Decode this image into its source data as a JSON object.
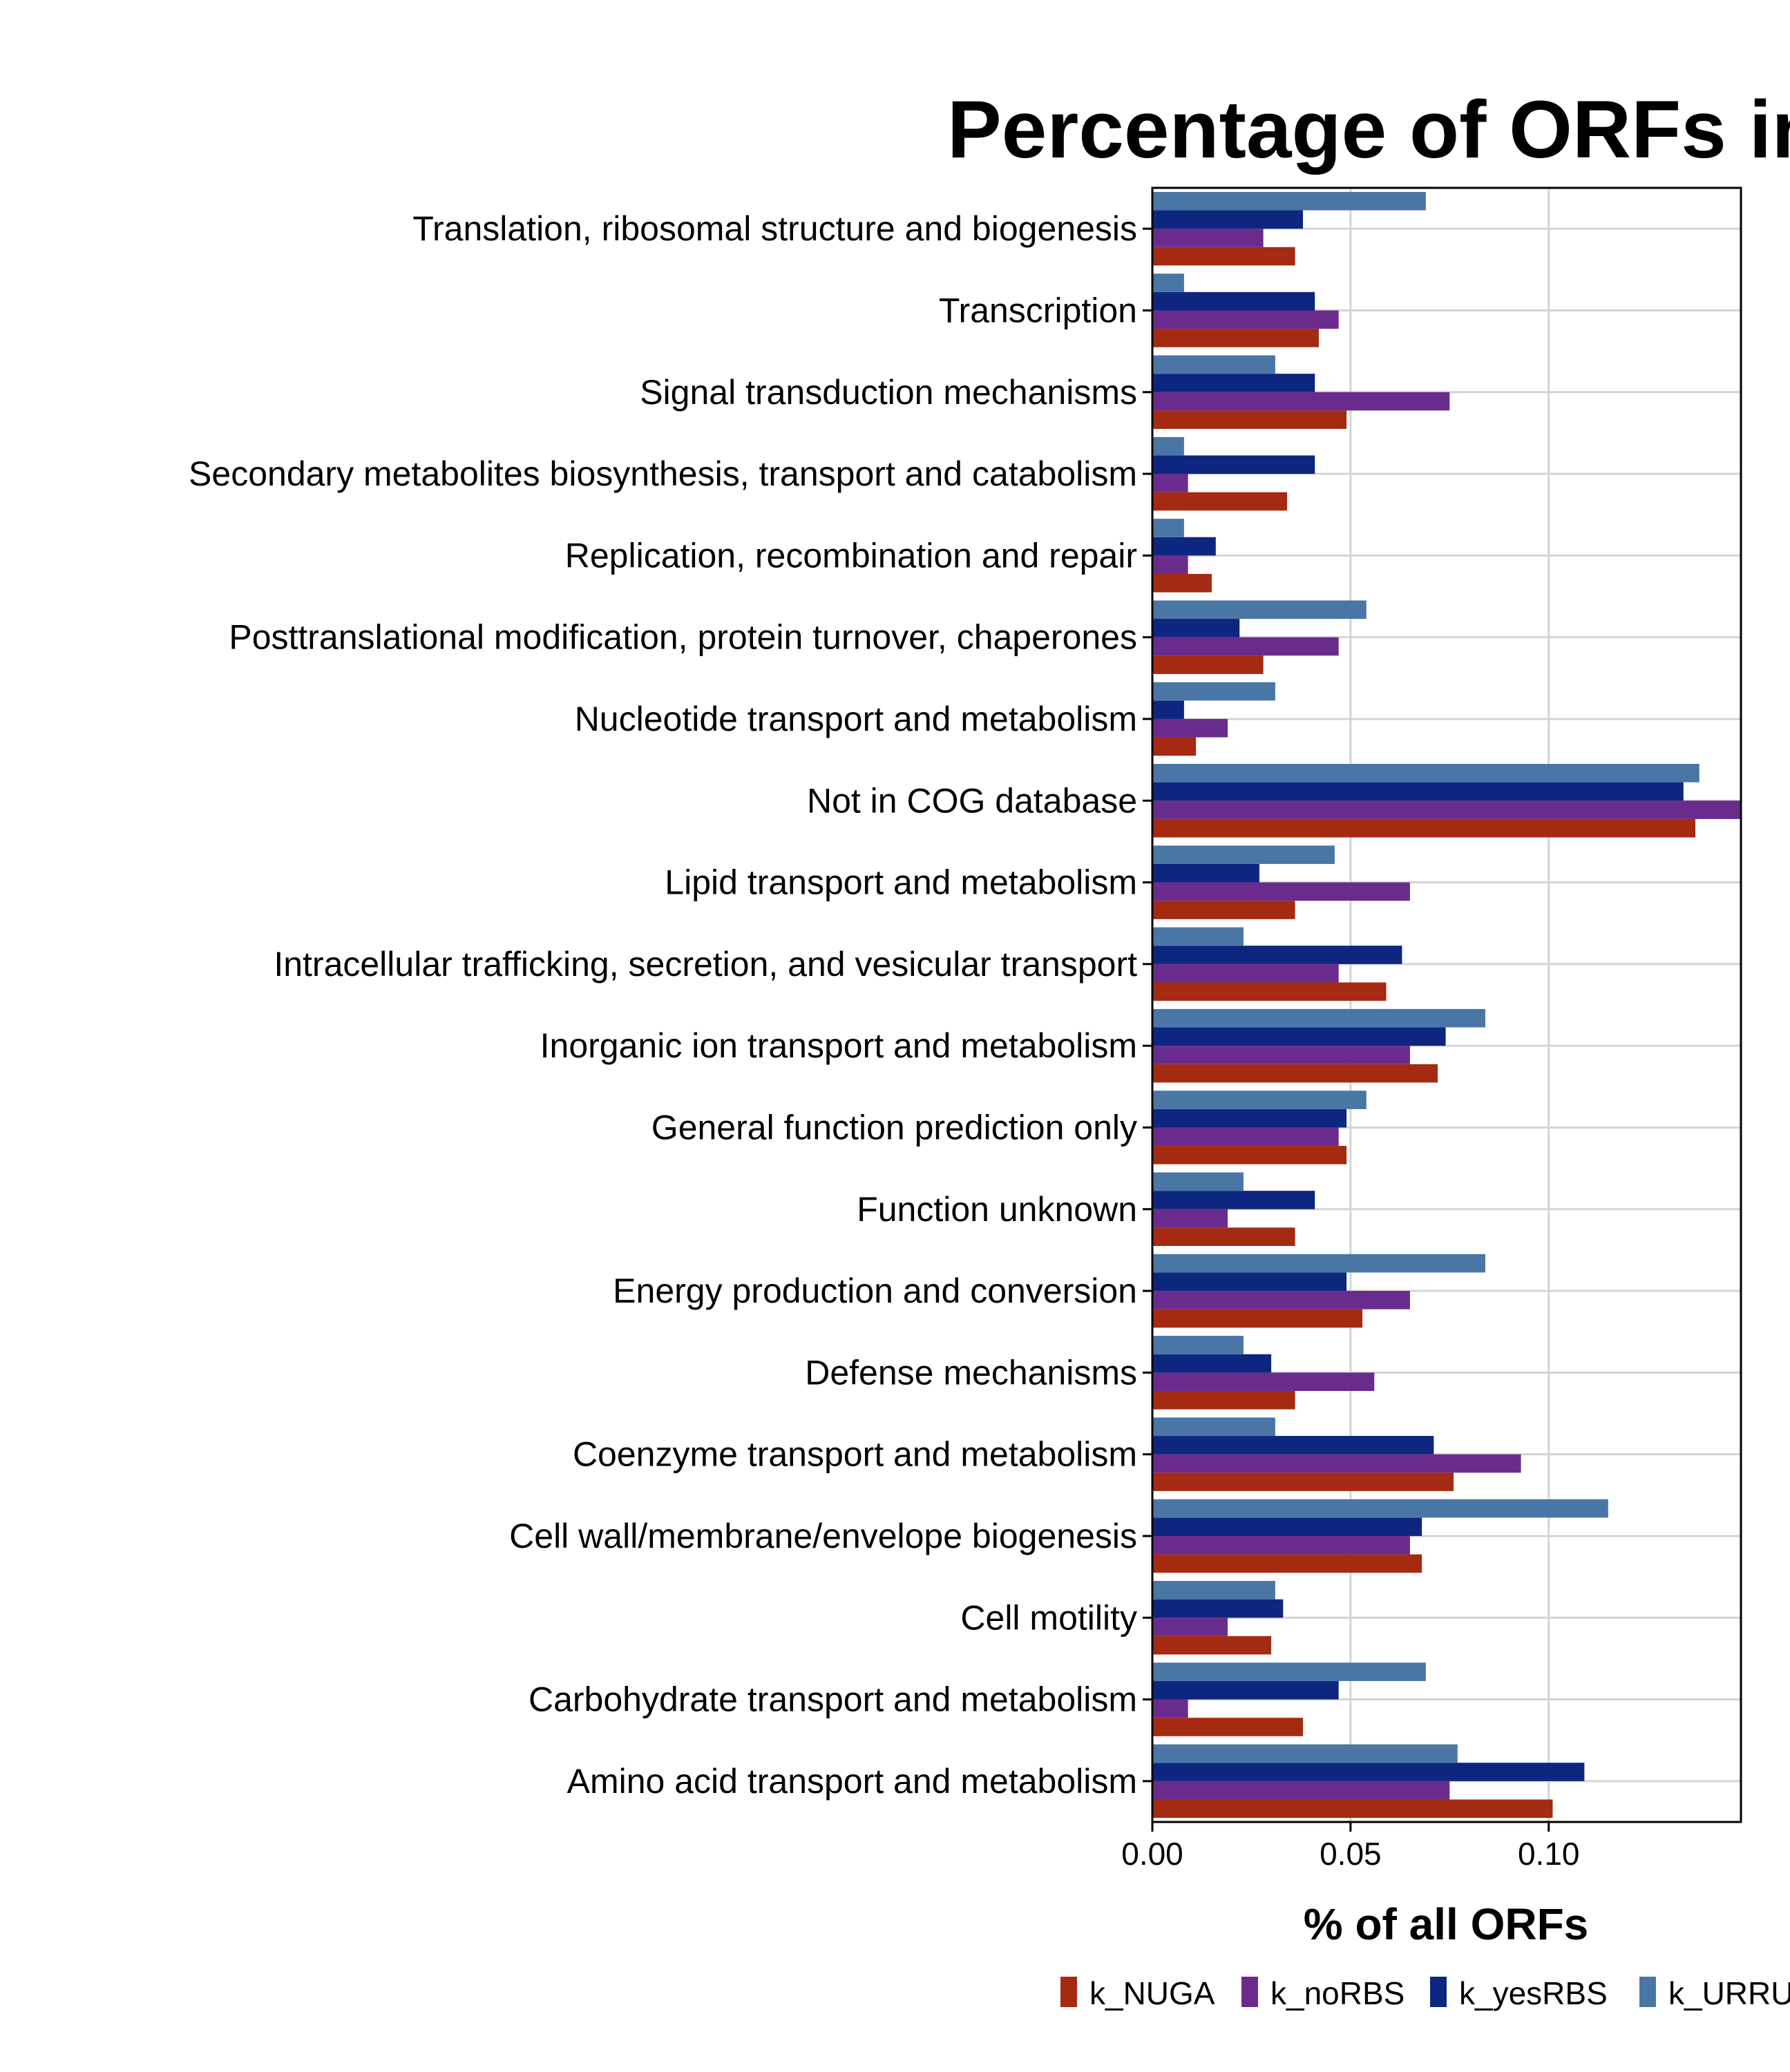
{
  "chart_data": {
    "type": "bar",
    "orientation": "horizontal",
    "title": "Percentage of ORFs in",
    "xlabel": "% of all ORFs",
    "ylabel": "",
    "xlim": [
      0,
      0.1485
    ],
    "xticks": [
      0.0,
      0.05,
      0.1
    ],
    "xtick_labels": [
      "0.00",
      "0.05",
      "0.10"
    ],
    "grid": true,
    "legend_position": "bottom",
    "categories": [
      "Translation, ribosomal structure and biogenesis",
      "Transcription",
      "Signal transduction mechanisms",
      "Secondary metabolites biosynthesis, transport and catabolism",
      "Replication, recombination and repair",
      "Posttranslational modification, protein turnover, chaperones",
      "Nucleotide transport and metabolism",
      "Not in COG database",
      "Lipid transport and metabolism",
      "Intracellular trafficking, secretion, and vesicular transport",
      "Inorganic ion transport and metabolism",
      "General function prediction only",
      "Function unknown",
      "Energy production and conversion",
      "Defense mechanisms",
      "Coenzyme transport and metabolism",
      "Cell wall/membrane/envelope biogenesis",
      "Cell motility",
      "Carbohydrate transport and metabolism",
      "Amino acid transport and metabolism"
    ],
    "series": [
      {
        "name": "k_NUGA",
        "color": "#A52A12",
        "values": [
          0.036,
          0.042,
          0.049,
          0.034,
          0.015,
          0.028,
          0.011,
          0.137,
          0.036,
          0.059,
          0.072,
          0.049,
          0.036,
          0.053,
          0.036,
          0.076,
          0.068,
          0.03,
          0.038,
          0.101
        ]
      },
      {
        "name": "k_noRBS",
        "color": "#6A2C8C",
        "values": [
          0.028,
          0.047,
          0.075,
          0.009,
          0.009,
          0.047,
          0.019,
          0.149,
          0.065,
          0.047,
          0.065,
          0.047,
          0.019,
          0.065,
          0.056,
          0.093,
          0.065,
          0.019,
          0.009,
          0.075
        ]
      },
      {
        "name": "k_yesRBS",
        "color": "#0D2680",
        "values": [
          0.038,
          0.041,
          0.041,
          0.041,
          0.016,
          0.022,
          0.008,
          0.134,
          0.027,
          0.063,
          0.074,
          0.049,
          0.041,
          0.049,
          0.03,
          0.071,
          0.068,
          0.033,
          0.047,
          0.109
        ]
      },
      {
        "name": "k_URRU",
        "color": "#4A76A6",
        "values": [
          0.069,
          0.008,
          0.031,
          0.008,
          0.008,
          0.054,
          0.031,
          0.138,
          0.046,
          0.023,
          0.084,
          0.054,
          0.023,
          0.084,
          0.023,
          0.031,
          0.115,
          0.031,
          0.069,
          0.077
        ]
      }
    ]
  }
}
